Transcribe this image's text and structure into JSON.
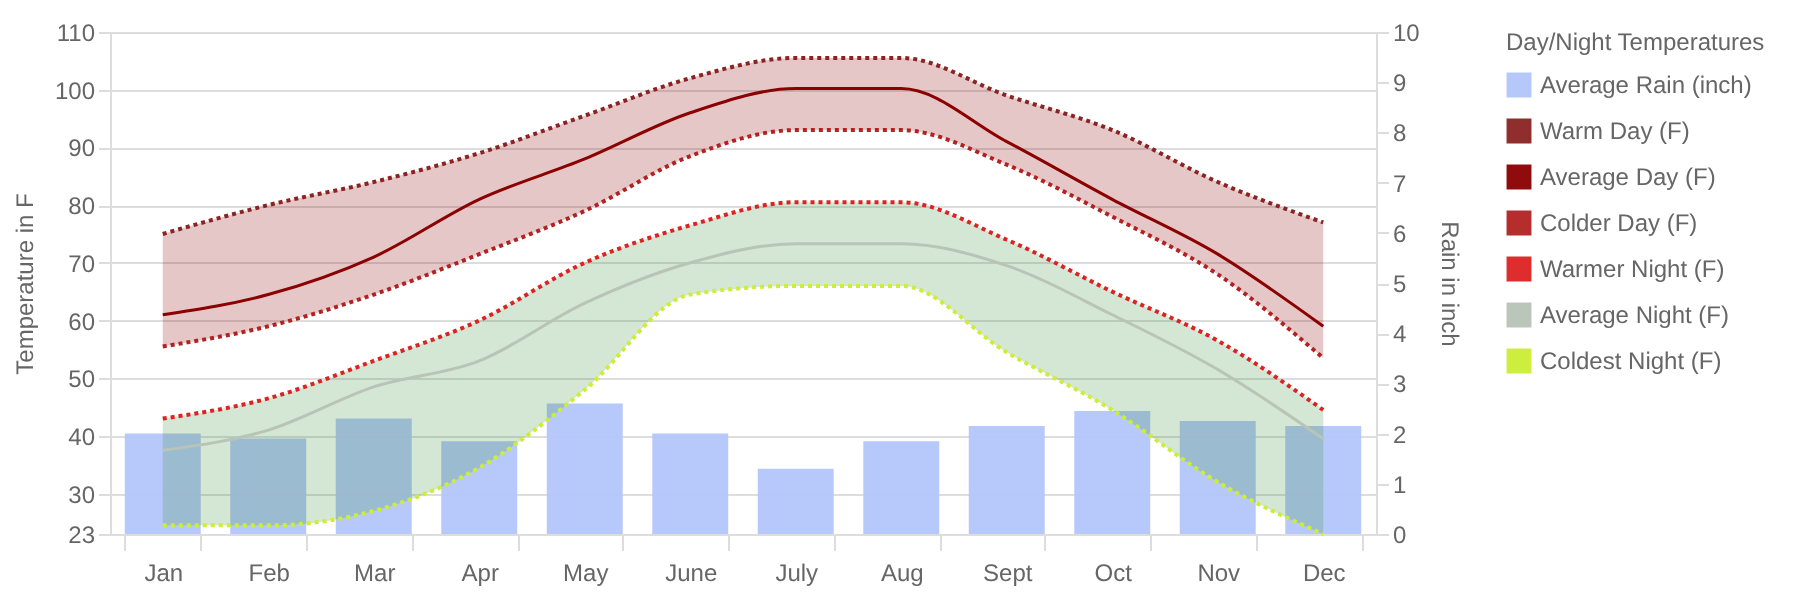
{
  "chart_data": {
    "type": "line",
    "ylabel": "Temperature in F",
    "y2label": "Rain in inch",
    "legend_title": "Day/Night Temperatures",
    "legend": "right",
    "grid": "y",
    "categories": [
      "Jan",
      "Feb",
      "Mar",
      "Apr",
      "May",
      "June",
      "July",
      "Aug",
      "Sept",
      "Oct",
      "Nov",
      "Dec"
    ],
    "ylim": [
      23,
      110
    ],
    "yticks": [
      23,
      30,
      40,
      50,
      60,
      70,
      80,
      90,
      100,
      110
    ],
    "y2lim": [
      0,
      10
    ],
    "y2ticks": [
      0,
      1,
      2,
      3,
      4,
      5,
      6,
      7,
      8,
      9,
      10
    ],
    "series": [
      {
        "name": "Average Rain (inch)",
        "type": "bar",
        "axis": "y2",
        "color": "#b3c5fa",
        "values": [
          2.0,
          1.9,
          2.3,
          1.85,
          2.6,
          2.0,
          1.3,
          1.85,
          2.15,
          2.45,
          2.25,
          2.15
        ]
      },
      {
        "name": "Warm Day (F)",
        "line_style": "dotted",
        "color": "#8b2323",
        "values": [
          75,
          80,
          84,
          89,
          95.5,
          102,
          105.5,
          105.5,
          99,
          93,
          84,
          77
        ]
      },
      {
        "name": "Average Day (F)",
        "line_style": "solid",
        "color": "#8b0000",
        "values": [
          61,
          64.5,
          71,
          81,
          88,
          96,
          100.2,
          100.2,
          91,
          81,
          71.5,
          59
        ],
        "lower": [
          55.5,
          59,
          64.5,
          71.5,
          79,
          88.5,
          93,
          93,
          87,
          78,
          68,
          53.5
        ],
        "upper": [
          75,
          80,
          84,
          89,
          95.5,
          102,
          105.5,
          105.5,
          99,
          93,
          84,
          77
        ]
      },
      {
        "name": "Colder Day (F)",
        "line_style": "dotted",
        "color": "#b22222",
        "values": [
          55.5,
          59,
          64.5,
          71.5,
          79,
          88.5,
          93,
          93,
          87,
          78,
          68,
          53.5
        ]
      },
      {
        "name": "Warmer Night (F)",
        "line_style": "dotted",
        "color": "#dd2222",
        "values": [
          43,
          46.5,
          53,
          60,
          70,
          76.5,
          80.5,
          80.5,
          74,
          65,
          56.5,
          44.5
        ]
      },
      {
        "name": "Average Night (F)",
        "line_style": "solid",
        "color": "#b8c4b8",
        "values": [
          37.5,
          41,
          48.5,
          53,
          63,
          70,
          73.3,
          73.3,
          69.5,
          61,
          51.5,
          39.5
        ],
        "lower": [
          24.5,
          24.5,
          27,
          34.5,
          48,
          64.5,
          66,
          66,
          54.5,
          44.5,
          32,
          23
        ],
        "upper": [
          43,
          46.5,
          53,
          60,
          70,
          76.5,
          80.5,
          80.5,
          74,
          65,
          56.5,
          44.5
        ]
      },
      {
        "name": "Coldest Night (F)",
        "line_style": "dotted",
        "color": "#ccee33",
        "values": [
          24.5,
          24.5,
          27,
          34.5,
          48,
          64.5,
          66,
          66,
          54.5,
          44.5,
          32,
          23
        ]
      }
    ]
  }
}
